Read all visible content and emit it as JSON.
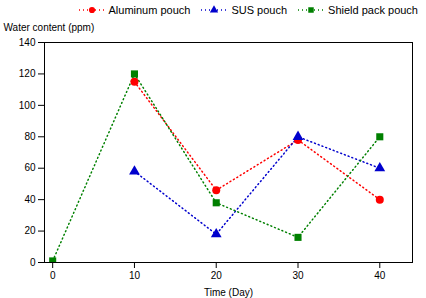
{
  "chart_data": {
    "type": "line",
    "x": [
      0,
      10,
      20,
      30,
      40
    ],
    "xlabel": "Time (Day)",
    "ylabel": "Water content (ppm)",
    "xlim": [
      -1,
      44
    ],
    "ylim": [
      0,
      140
    ],
    "xticks": [
      0,
      10,
      20,
      30,
      40
    ],
    "yticks": [
      0,
      20,
      40,
      60,
      80,
      100,
      120,
      140
    ],
    "legend": "upper right",
    "series": [
      {
        "name": "Aluminum pouch",
        "color": "#ff0000",
        "marker": "circle",
        "line_style": "dotted",
        "values": [
          null,
          115,
          46,
          78,
          40
        ]
      },
      {
        "name": "SUS pouch",
        "color": "#0000cd",
        "marker": "triangle",
        "line_style": "dotted",
        "values": [
          null,
          58,
          18,
          80,
          60
        ]
      },
      {
        "name": "Shield pack pouch",
        "color": "#008000",
        "marker": "square",
        "line_style": "dotted",
        "values": [
          1,
          120,
          38,
          16,
          80
        ]
      }
    ]
  }
}
